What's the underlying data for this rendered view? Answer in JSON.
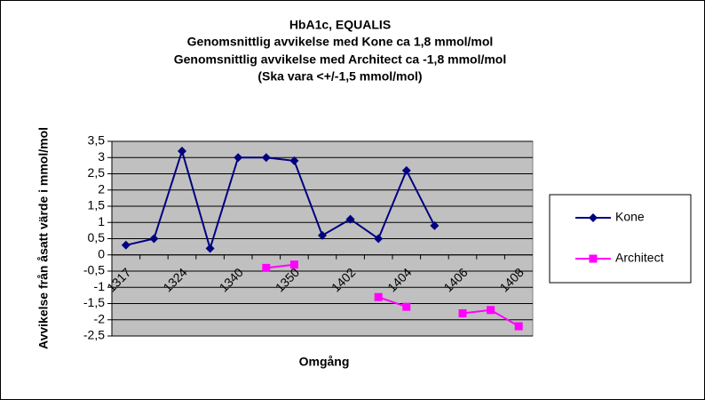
{
  "chart_data": {
    "type": "line",
    "title": [
      "HbA1c, EQUALIS",
      "Genomsnittlig  avvikelse  med Kone  ca 1,8 mmol/mol",
      "Genomsnittlig  avvikelse  med Architect   ca -1,8 mmol/mol",
      "(Ska vara <+/-1,5 mmol/mol)"
    ],
    "x_label": "Omgång",
    "y_label": "Avvikelse  från åsatt värde i mmol/mol",
    "categories": [
      "1317",
      null,
      "1324",
      null,
      "1340",
      null,
      "1350",
      null,
      "1402",
      null,
      "1404",
      null,
      "1406",
      null,
      "1408"
    ],
    "series": [
      {
        "name": "Kone",
        "color": "#000080",
        "marker": "diamond",
        "values": [
          0.3,
          0.5,
          3.2,
          0.2,
          3.0,
          3.0,
          2.9,
          0.6,
          1.1,
          0.5,
          2.6,
          0.9,
          null,
          null,
          null
        ]
      },
      {
        "name": "Architect",
        "color": "#ff00ff",
        "marker": "square",
        "values": [
          null,
          null,
          null,
          null,
          null,
          -0.4,
          -0.3,
          null,
          null,
          -1.3,
          -1.6,
          null,
          -1.8,
          -1.7,
          -2.2
        ]
      }
    ],
    "ylim": [
      -2.5,
      3.5
    ],
    "yticks": [
      {
        "value": 3.5,
        "label": "3,5"
      },
      3,
      {
        "value": 2.5,
        "label": "2,5"
      },
      2,
      {
        "value": 1.5,
        "label": "1,5"
      },
      1,
      {
        "value": 0.5,
        "label": "0,5"
      },
      0,
      {
        "value": -0.5,
        "label": "-0,5"
      },
      -1,
      {
        "value": -1.5,
        "label": "-1,5"
      },
      -2,
      {
        "value": -2.5,
        "label": "-2,5"
      }
    ],
    "grid": true,
    "legend": "right"
  }
}
